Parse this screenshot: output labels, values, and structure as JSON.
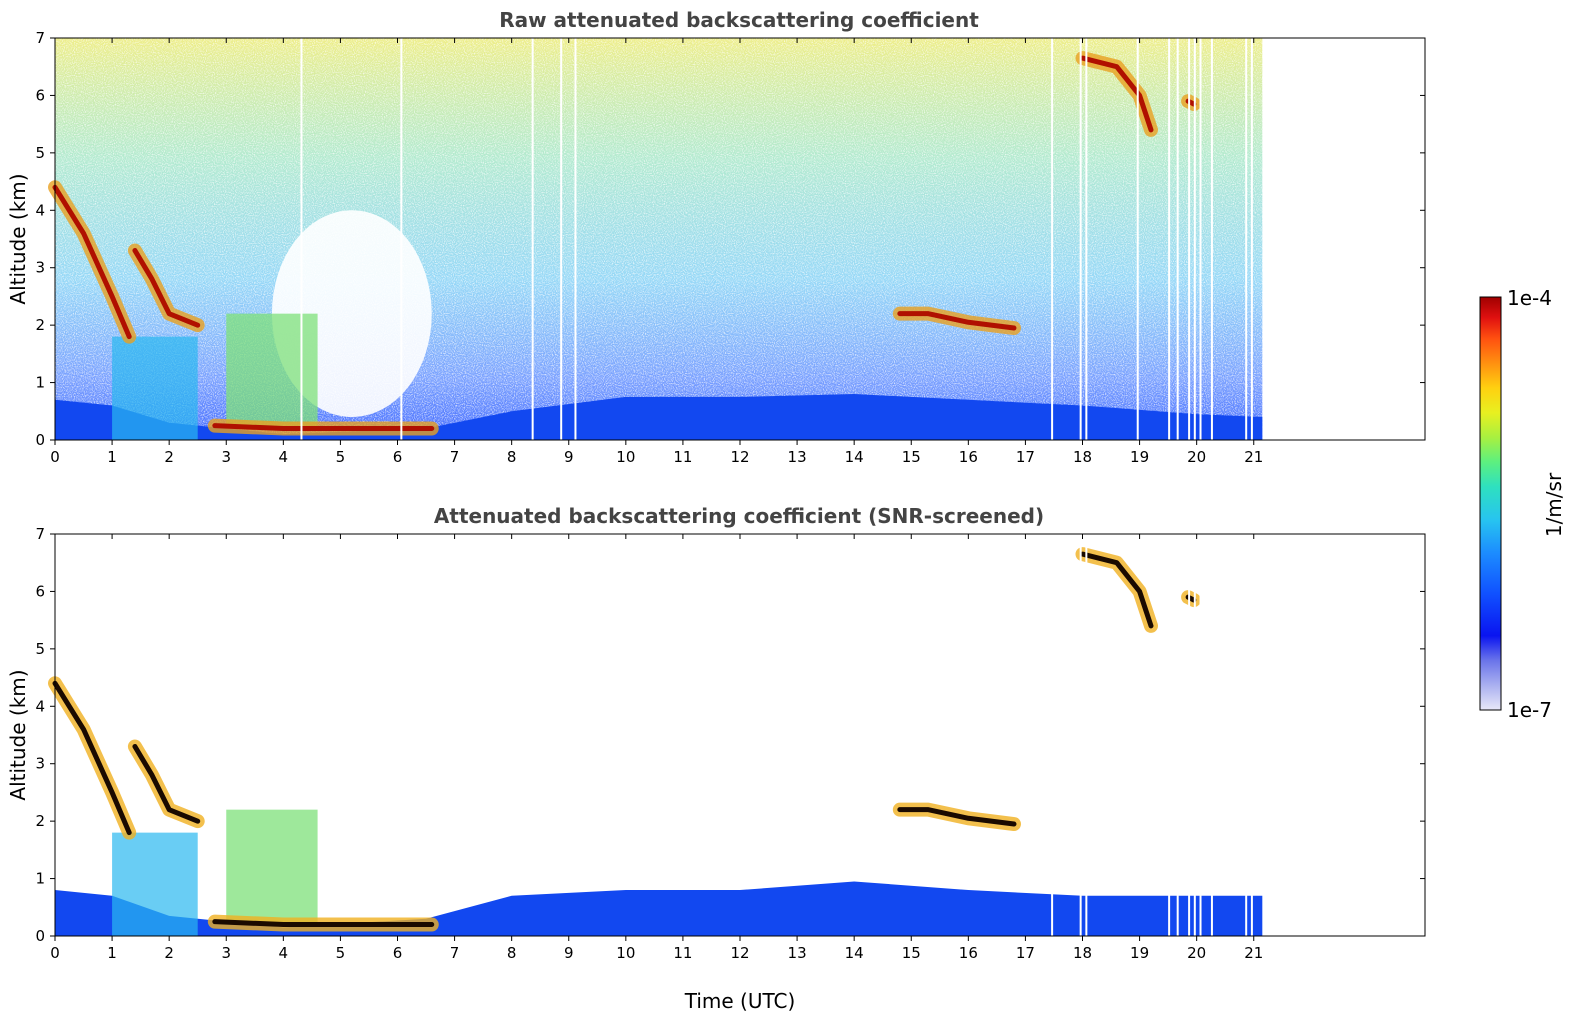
{
  "chart_data": [
    {
      "type": "heatmap",
      "title": "Raw attenuated backscattering coefficient",
      "xlabel": "",
      "ylabel": "Altitude (km)",
      "xlim": [
        0,
        24
      ],
      "ylim": [
        0,
        7
      ],
      "xticks": [
        "0",
        "1",
        "2",
        "3",
        "4",
        "5",
        "6",
        "7",
        "8",
        "9",
        "10",
        "11",
        "12",
        "13",
        "14",
        "15",
        "16",
        "17",
        "18",
        "19",
        "20",
        "21"
      ],
      "yticks": [
        "0",
        "1",
        "2",
        "3",
        "4",
        "5",
        "6",
        "7"
      ],
      "data_end_time": 21.15,
      "noise_top_km": 7,
      "boundary_layer_km": [
        [
          0,
          0.7
        ],
        [
          1,
          0.6
        ],
        [
          2,
          0.3
        ],
        [
          4,
          0.1
        ],
        [
          6.5,
          0.2
        ],
        [
          8,
          0.5
        ],
        [
          10,
          0.75
        ],
        [
          12,
          0.75
        ],
        [
          14,
          0.8
        ],
        [
          16,
          0.7
        ],
        [
          18,
          0.6
        ],
        [
          20,
          0.45
        ],
        [
          21.15,
          0.4
        ]
      ],
      "cloud_layers": [
        {
          "name": "descending cloud 1",
          "points": [
            [
              0,
              4.4
            ],
            [
              0.5,
              3.6
            ],
            [
              1.0,
              2.5
            ],
            [
              1.3,
              1.8
            ]
          ]
        },
        {
          "name": "descending cloud 2",
          "points": [
            [
              1.4,
              3.3
            ],
            [
              1.7,
              2.8
            ],
            [
              2.0,
              2.2
            ],
            [
              2.5,
              2.0
            ]
          ]
        },
        {
          "name": "low cloud",
          "points": [
            [
              2.8,
              0.25
            ],
            [
              4.0,
              0.2
            ],
            [
              5.0,
              0.2
            ],
            [
              6.6,
              0.2
            ]
          ]
        },
        {
          "name": "mid cloud",
          "points": [
            [
              14.8,
              2.2
            ],
            [
              15.3,
              2.2
            ],
            [
              16.0,
              2.05
            ],
            [
              16.8,
              1.95
            ]
          ]
        },
        {
          "name": "high cloud",
          "points": [
            [
              18.0,
              6.65
            ],
            [
              18.6,
              6.5
            ],
            [
              19.0,
              6.0
            ],
            [
              19.2,
              5.4
            ]
          ]
        },
        {
          "name": "high cloud 2",
          "points": [
            [
              19.85,
              5.9
            ],
            [
              19.95,
              5.85
            ]
          ]
        }
      ],
      "gaps_utc": [
        4.3,
        6.05,
        8.35,
        8.85,
        9.1,
        17.45,
        17.95,
        18.05,
        18.95,
        19.5,
        19.65,
        19.85,
        19.95,
        20.05,
        20.25,
        20.85,
        20.95
      ]
    },
    {
      "type": "heatmap",
      "title": "Attenuated backscattering coefficient (SNR-screened)",
      "xlabel": "Time (UTC)",
      "ylabel": "Altitude (km)",
      "xlim": [
        0,
        24
      ],
      "ylim": [
        0,
        7
      ],
      "xticks": [
        "0",
        "1",
        "2",
        "3",
        "4",
        "5",
        "6",
        "7",
        "8",
        "9",
        "10",
        "11",
        "12",
        "13",
        "14",
        "15",
        "16",
        "17",
        "18",
        "19",
        "20",
        "21"
      ],
      "yticks": [
        "0",
        "1",
        "2",
        "3",
        "4",
        "5",
        "6",
        "7"
      ],
      "data_end_time": 21.15,
      "boundary_layer_km": [
        [
          0,
          0.8
        ],
        [
          1,
          0.7
        ],
        [
          2,
          0.35
        ],
        [
          4,
          0.15
        ],
        [
          6.5,
          0.3
        ],
        [
          8,
          0.7
        ],
        [
          10,
          0.8
        ],
        [
          12,
          0.8
        ],
        [
          14,
          0.95
        ],
        [
          16,
          0.8
        ],
        [
          18,
          0.7
        ],
        [
          20,
          0.7
        ],
        [
          21.15,
          0.7
        ]
      ],
      "cloud_layers": [
        {
          "name": "descending cloud 1",
          "points": [
            [
              0,
              4.4
            ],
            [
              0.5,
              3.6
            ],
            [
              1.0,
              2.5
            ],
            [
              1.3,
              1.8
            ]
          ]
        },
        {
          "name": "descending cloud 2",
          "points": [
            [
              1.4,
              3.3
            ],
            [
              1.7,
              2.8
            ],
            [
              2.0,
              2.2
            ],
            [
              2.5,
              2.0
            ]
          ]
        },
        {
          "name": "low cloud",
          "points": [
            [
              2.8,
              0.25
            ],
            [
              4.0,
              0.2
            ],
            [
              5.0,
              0.2
            ],
            [
              6.6,
              0.2
            ]
          ]
        },
        {
          "name": "mid cloud",
          "points": [
            [
              14.8,
              2.2
            ],
            [
              15.3,
              2.2
            ],
            [
              16.0,
              2.05
            ],
            [
              16.8,
              1.95
            ]
          ]
        },
        {
          "name": "high cloud",
          "points": [
            [
              18.0,
              6.65
            ],
            [
              18.6,
              6.5
            ],
            [
              19.0,
              6.0
            ],
            [
              19.2,
              5.4
            ]
          ]
        },
        {
          "name": "high cloud 2",
          "points": [
            [
              19.85,
              5.9
            ],
            [
              19.95,
              5.85
            ]
          ]
        }
      ],
      "gaps_utc": [
        17.45,
        17.95,
        18.05,
        19.5,
        19.65,
        19.85,
        19.95,
        20.05,
        20.25,
        20.85,
        20.95
      ]
    }
  ],
  "colorbar": {
    "max_label": "1e-4",
    "min_label": "1e-7",
    "unit_label": "1/m/sr",
    "colors": [
      "#e8e8f8",
      "#aab0f0",
      "#6a74ea",
      "#0a14f0",
      "#1050ff",
      "#1c8cff",
      "#27c4f0",
      "#2ee0c0",
      "#5cf080",
      "#a8f040",
      "#e8f020",
      "#ffd010",
      "#ff9010",
      "#ff5010",
      "#e01010",
      "#a00000"
    ]
  }
}
